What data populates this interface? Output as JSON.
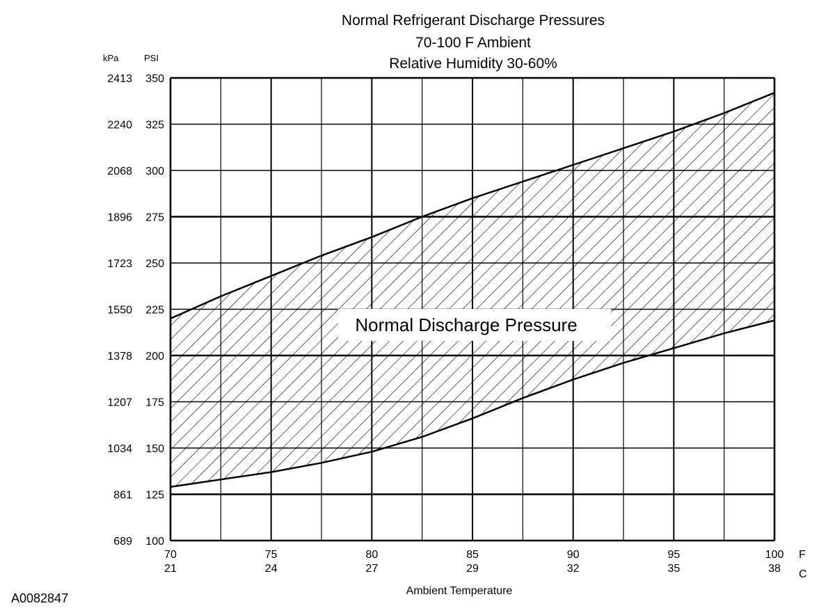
{
  "chart_data": {
    "type": "area",
    "title_lines": [
      "Normal  Refrigerant  Discharge  Pressures",
      "70-100 F Ambient",
      "Relative Humidity 30-60%"
    ],
    "xlabel": "Ambient Temperature",
    "x_unit_f": "F",
    "x_unit_c": "C",
    "y_unit_kpa": "kPa",
    "y_unit_psi": "PSI",
    "xlim": [
      70,
      100
    ],
    "ylim": [
      100,
      350
    ],
    "x_ticks_f": [
      "70",
      "75",
      "80",
      "85",
      "90",
      "95",
      "100"
    ],
    "x_ticks_c": [
      "21",
      "24",
      "27",
      "29",
      "32",
      "35",
      "38"
    ],
    "y_ticks_psi": [
      "350",
      "325",
      "300",
      "275",
      "250",
      "225",
      "200",
      "175",
      "150",
      "125",
      "100"
    ],
    "y_ticks_kpa": [
      "2413",
      "2240",
      "2068",
      "1896",
      "1723",
      "1550",
      "1378",
      "1207",
      "1034",
      "861",
      "689"
    ],
    "band_label": "Normal Discharge Pressure",
    "upper_boundary": {
      "x": [
        70,
        72.5,
        75,
        77.5,
        80,
        82.5,
        85,
        87.5,
        90,
        92.5,
        95,
        97.5,
        100
      ],
      "y": [
        220,
        232,
        243,
        254,
        264,
        275,
        285,
        294,
        303,
        312,
        321,
        331,
        342
      ]
    },
    "lower_boundary": {
      "x": [
        70,
        72.5,
        75,
        77.5,
        80,
        82.5,
        85,
        87.5,
        90,
        92.5,
        95,
        97.5,
        100
      ],
      "y": [
        129,
        133,
        137,
        142,
        148,
        156,
        166,
        177,
        187,
        196,
        204,
        212,
        219
      ]
    },
    "grid": true
  },
  "figure_id": "A0082847"
}
